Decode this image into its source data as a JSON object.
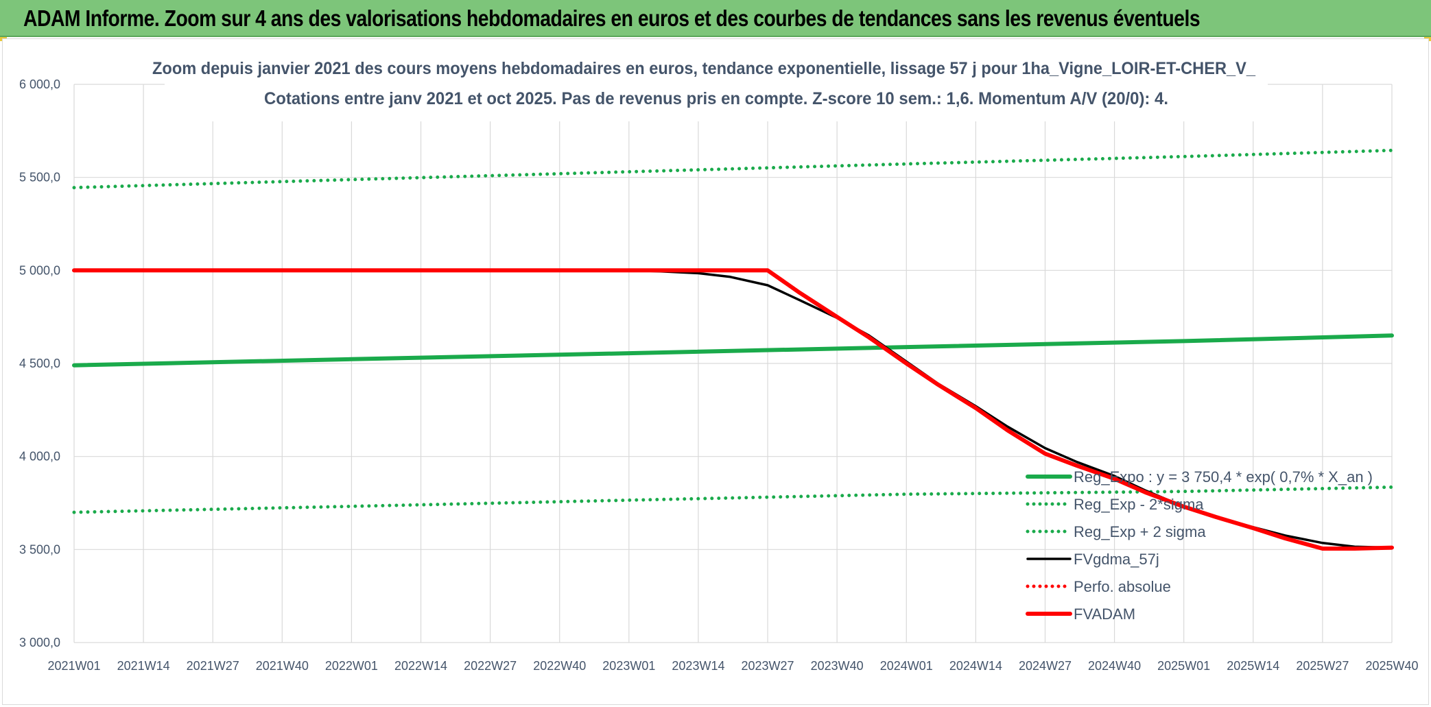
{
  "banner": {
    "title": "ADAM Informe. Zoom sur 4 ans des valorisations hebdomadaires en euros et des courbes de tendances sans les revenus éventuels"
  },
  "colors": {
    "banner_bg": "#7dc57a",
    "reg_green": "#1aaa4b",
    "black_series": "#000000",
    "red_series": "#ff0000",
    "axis_text": "#44546a",
    "grid": "#d9d9d9"
  },
  "chart_data": {
    "type": "line",
    "title": "Zoom depuis janvier 2021 des cours moyens hebdomadaires en euros, tendance exponentielle, lissage 57 j pour 1ha_Vigne_LOIR-ET-CHER_V_",
    "subtitle": "Cotations entre janv 2021 et oct 2025. Pas de revenus pris en compte. Z-score 10 sem.: 1,6. Momentum A/V (20/0): 4.",
    "xlabel": "",
    "ylabel": "",
    "x_ticks": [
      "2021W01",
      "2021W14",
      "2021W27",
      "2021W40",
      "2022W01",
      "2022W14",
      "2022W27",
      "2022W40",
      "2023W01",
      "2023W14",
      "2023W27",
      "2023W40",
      "2024W01",
      "2024W14",
      "2024W27",
      "2024W40",
      "2025W01",
      "2025W14",
      "2025W27",
      "2025W40"
    ],
    "y_ticks": [
      "3 000,0",
      "3 500,0",
      "4 000,0",
      "4 500,0",
      "5 000,0",
      "5 500,0",
      "6 000,0"
    ],
    "ylim": [
      3000,
      6000
    ],
    "grid": true,
    "legend_position": "right-bottom",
    "series": [
      {
        "name": "Reg_Expo : y = 3 750,4 * exp( 0,7% *  X_an )",
        "style": "solid-thick",
        "color": "#1aaa4b",
        "points": [
          [
            "2021W01",
            4490
          ],
          [
            "2022W01",
            4523
          ],
          [
            "2023W01",
            4555
          ],
          [
            "2024W01",
            4588
          ],
          [
            "2025W01",
            4620
          ],
          [
            "2025W40",
            4650
          ]
        ]
      },
      {
        "name": "Reg_Exp - 2*sigma",
        "style": "dotted",
        "color": "#1aaa4b",
        "points": [
          [
            "2021W01",
            3700
          ],
          [
            "2022W01",
            3732
          ],
          [
            "2023W01",
            3765
          ],
          [
            "2024W01",
            3797
          ],
          [
            "2025W01",
            3812
          ],
          [
            "2025W40",
            3835
          ]
        ]
      },
      {
        "name": "Reg_Exp + 2 sigma",
        "style": "dotted",
        "color": "#1aaa4b",
        "points": [
          [
            "2021W01",
            5445
          ],
          [
            "2022W01",
            5488
          ],
          [
            "2023W01",
            5530
          ],
          [
            "2024W01",
            5572
          ],
          [
            "2025W01",
            5612
          ],
          [
            "2025W40",
            5645
          ]
        ]
      },
      {
        "name": "FVgdma_57j",
        "style": "solid",
        "color": "#000000",
        "points": [
          [
            "2021W01",
            5000
          ],
          [
            "2023W01",
            5000
          ],
          [
            "2023W07",
            4995
          ],
          [
            "2023W14",
            4985
          ],
          [
            "2023W20",
            4965
          ],
          [
            "2023W27",
            4920
          ],
          [
            "2023W33",
            4840
          ],
          [
            "2023W40",
            4745
          ],
          [
            "2023W46",
            4650
          ],
          [
            "2024W01",
            4510
          ],
          [
            "2024W07",
            4390
          ],
          [
            "2024W14",
            4270
          ],
          [
            "2024W20",
            4160
          ],
          [
            "2024W27",
            4045
          ],
          [
            "2024W33",
            3970
          ],
          [
            "2024W40",
            3895
          ],
          [
            "2024W46",
            3815
          ],
          [
            "2025W01",
            3730
          ],
          [
            "2025W07",
            3675
          ],
          [
            "2025W14",
            3620
          ],
          [
            "2025W20",
            3575
          ],
          [
            "2025W27",
            3535
          ],
          [
            "2025W33",
            3515
          ],
          [
            "2025W40",
            3510
          ]
        ]
      },
      {
        "name": "Perfo. absolue",
        "style": "dotted",
        "color": "#ff0000",
        "points": []
      },
      {
        "name": "FVADAM",
        "style": "solid-thick",
        "color": "#ff0000",
        "points": [
          [
            "2021W01",
            5000
          ],
          [
            "2023W27",
            5000
          ],
          [
            "2023W33",
            4880
          ],
          [
            "2023W40",
            4750
          ],
          [
            "2023W46",
            4640
          ],
          [
            "2024W01",
            4500
          ],
          [
            "2024W07",
            4385
          ],
          [
            "2024W14",
            4260
          ],
          [
            "2024W20",
            4140
          ],
          [
            "2024W27",
            4015
          ],
          [
            "2024W33",
            3950
          ],
          [
            "2024W40",
            3880
          ],
          [
            "2024W46",
            3805
          ],
          [
            "2025W01",
            3730
          ],
          [
            "2025W07",
            3675
          ],
          [
            "2025W14",
            3615
          ],
          [
            "2025W20",
            3560
          ],
          [
            "2025W27",
            3505
          ],
          [
            "2025W33",
            3505
          ],
          [
            "2025W40",
            3510
          ]
        ]
      }
    ]
  }
}
